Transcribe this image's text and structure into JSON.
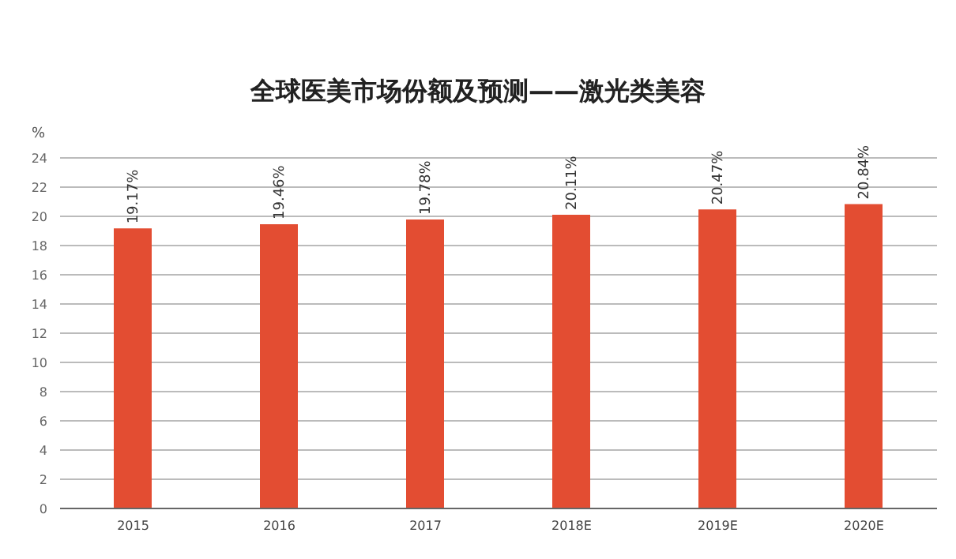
{
  "chart_data": {
    "type": "bar",
    "title": "全球医美市场份额及预测——激光类美容",
    "ylabel": "%",
    "categories": [
      "2015",
      "2016",
      "2017",
      "2018E",
      "2019E",
      "2020E"
    ],
    "values": [
      19.17,
      19.46,
      19.78,
      20.11,
      20.47,
      20.84
    ],
    "value_labels": [
      "19.17%",
      "19.46%",
      "19.78%",
      "20.11%",
      "20.47%",
      "20.84%"
    ],
    "color": "#e34d32",
    "ylim": [
      0,
      24
    ],
    "yticks": [
      0,
      2,
      4,
      6,
      8,
      10,
      12,
      14,
      16,
      18,
      20,
      22,
      24
    ],
    "grid": "y"
  }
}
